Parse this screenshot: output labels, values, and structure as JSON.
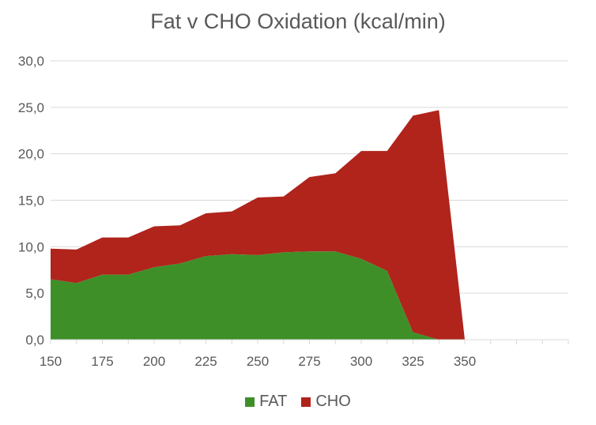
{
  "chart_data": {
    "type": "area",
    "stacked": true,
    "title": "Fat v CHO Oxidation (kcal/min)",
    "xlabel": "",
    "ylabel": "",
    "ylim": [
      0,
      30
    ],
    "y_ticks": [
      "0,0",
      "5,0",
      "10,0",
      "15,0",
      "20,0",
      "25,0",
      "30,0"
    ],
    "x_tick_labels": [
      "150",
      "175",
      "200",
      "225",
      "250",
      "275",
      "300",
      "325",
      "350"
    ],
    "x": [
      150,
      162.5,
      175,
      187.5,
      200,
      212.5,
      225,
      237.5,
      250,
      262.5,
      275,
      287.5,
      300,
      312.5,
      325,
      337.5,
      350
    ],
    "series": [
      {
        "name": "FAT",
        "color": "#3f8f29",
        "values": [
          6.5,
          6.1,
          7.0,
          7.0,
          7.8,
          8.2,
          9.0,
          9.2,
          9.1,
          9.4,
          9.5,
          9.5,
          8.7,
          7.4,
          0.8,
          0.0,
          0.0
        ]
      },
      {
        "name": "CHO",
        "color": "#b0241c",
        "values": [
          3.3,
          3.6,
          4.0,
          4.0,
          4.4,
          4.1,
          4.6,
          4.6,
          6.2,
          6.0,
          8.0,
          8.4,
          11.6,
          12.9,
          23.3,
          24.7,
          0.0
        ]
      }
    ],
    "grid": "horizontal",
    "legend_position": "bottom"
  }
}
